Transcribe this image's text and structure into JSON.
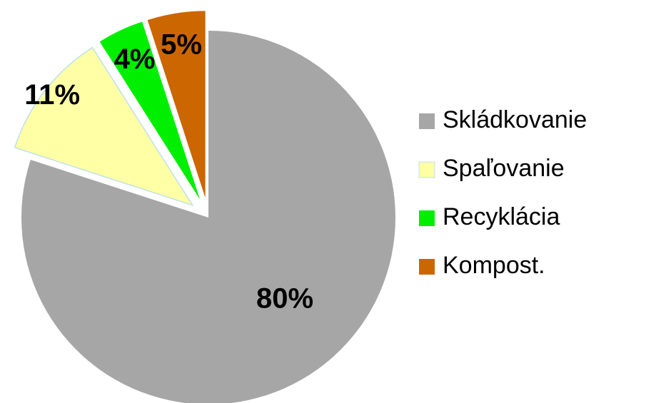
{
  "chart_data": {
    "type": "pie",
    "categories": [
      "Skládkovanie",
      "Spaľovanie",
      "Recyklácia",
      "Kompost."
    ],
    "values": [
      80,
      11,
      4,
      5
    ],
    "value_labels": [
      "80%",
      "11%",
      "4%",
      "5%"
    ],
    "colors": [
      "#a6a6a6",
      "#ffffa6",
      "#00ee00",
      "#cc6600"
    ],
    "legend": "right"
  }
}
